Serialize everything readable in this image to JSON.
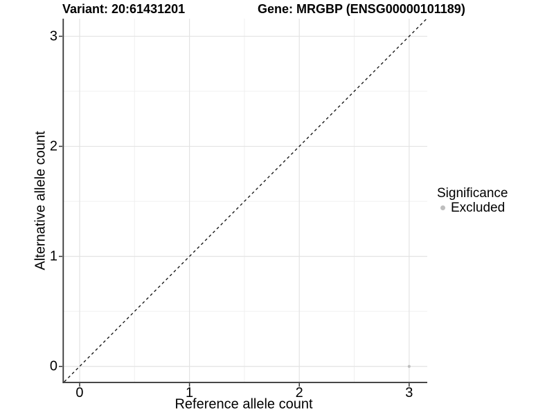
{
  "title": {
    "variant": "Variant: 20:61431201",
    "gene": "Gene: MRGBP (ENSG00000101189)"
  },
  "legend": {
    "title": "Significance",
    "items": [
      {
        "label": "Excluded",
        "color": "#bebebe"
      }
    ]
  },
  "colors": {
    "background": "#ffffff",
    "text": "#000000",
    "axis_line": "#333333",
    "grid_major": "#e3e3e3",
    "grid_minor": "#f0f0f0",
    "reference_line": "#1a1a1a",
    "excluded_point": "#bebebe"
  },
  "chart_data": {
    "type": "scatter",
    "title": "Variant: 20:61431201 | Gene: MRGBP (ENSG00000101189)",
    "xlabel": "Reference allele count",
    "ylabel": "Alternative allele count",
    "xlim": [
      -0.145,
      3.165
    ],
    "ylim": [
      -0.14,
      3.16
    ],
    "x_ticks": [
      0,
      1,
      2,
      3
    ],
    "y_ticks": [
      0,
      1,
      2,
      3
    ],
    "x_minor_ticks": [
      0.5,
      1.5,
      2.5
    ],
    "y_minor_ticks": [
      0.5,
      1.5,
      2.5
    ],
    "grid": "major+minor",
    "legend_position": "right",
    "series": [
      {
        "name": "Excluded",
        "color": "#bebebe",
        "points": [
          {
            "x": 3,
            "y": 0
          }
        ]
      }
    ],
    "reference_line": {
      "slope": 1,
      "intercept": 0,
      "style": "dashed",
      "color": "#1a1a1a"
    }
  }
}
